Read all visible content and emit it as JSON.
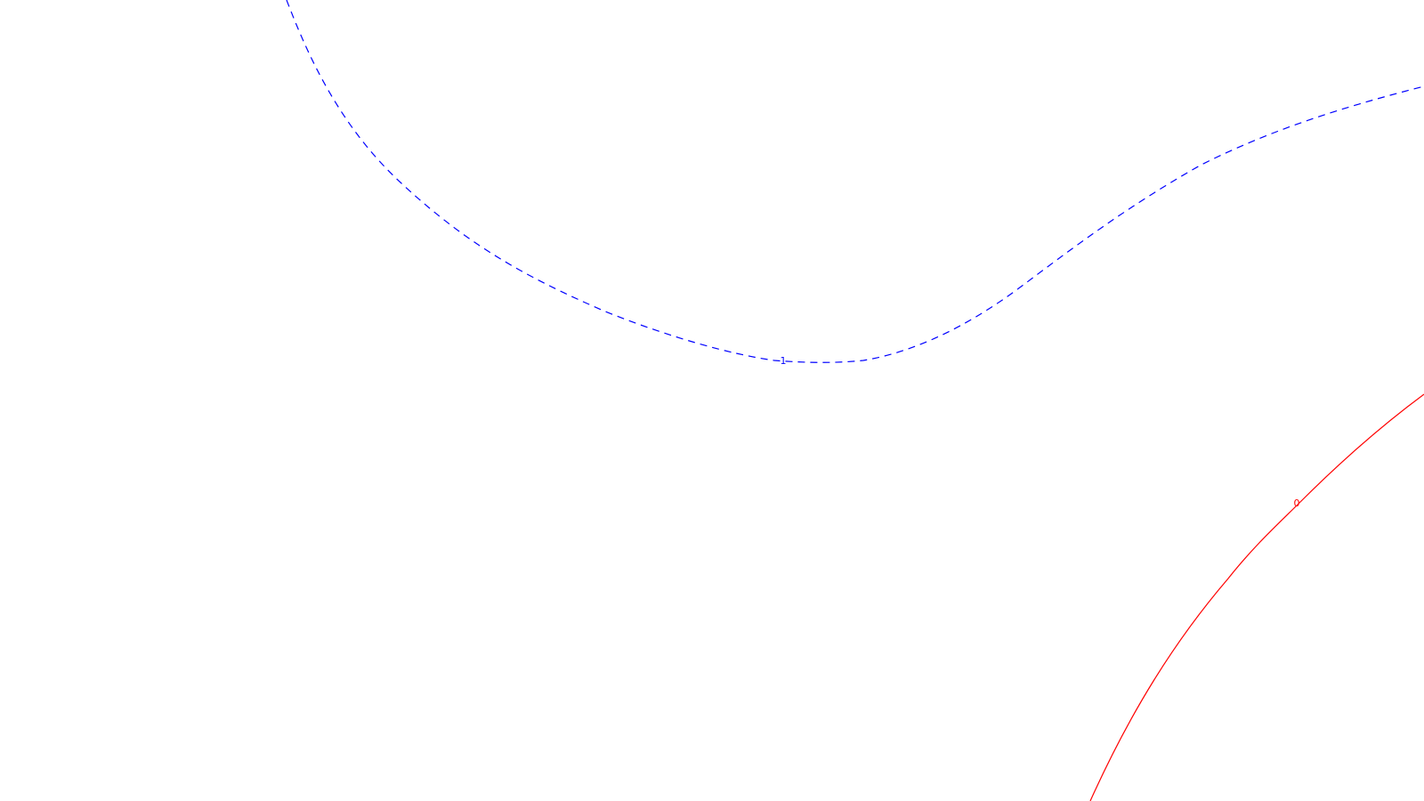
{
  "chart_data": {
    "type": "contour",
    "title": "",
    "xlabel": "",
    "ylabel": "",
    "grid": false,
    "contours": [
      {
        "level_label": "1",
        "color": "#0000ff",
        "style": "dashed"
      },
      {
        "level_label": "0",
        "color": "#ff0000",
        "style": "solid"
      }
    ]
  }
}
